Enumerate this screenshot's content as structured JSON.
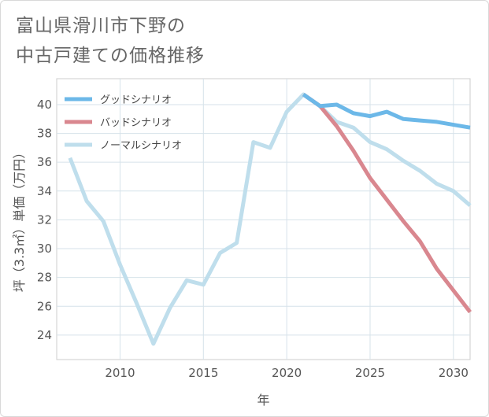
{
  "title": {
    "line1": "富山県滑川市下野の",
    "line2": "中古戸建ての価格推移"
  },
  "chart_data": {
    "type": "line",
    "xlabel": "年",
    "ylabel": "坪（3.3㎡）単価（万円）",
    "xlim": [
      2006.2,
      2031
    ],
    "ylim": [
      22.3,
      41.8
    ],
    "xticks": [
      2010,
      2015,
      2020,
      2025,
      2030
    ],
    "yticks": [
      24,
      26,
      28,
      30,
      32,
      34,
      36,
      38,
      40
    ],
    "grid": true,
    "legend_position": "top-left",
    "series": [
      {
        "name": "グッドシナリオ",
        "color": "#6cb8e8",
        "x": [
          2021,
          2022,
          2023,
          2024,
          2025,
          2026,
          2027,
          2028,
          2029,
          2030,
          2031
        ],
        "values": [
          40.7,
          39.9,
          40.0,
          39.4,
          39.2,
          39.5,
          39.0,
          38.9,
          38.8,
          38.6,
          38.4
        ]
      },
      {
        "name": "バッドシナリオ",
        "color": "#d9878f",
        "x": [
          2021,
          2022,
          2023,
          2024,
          2025,
          2026,
          2027,
          2028,
          2029,
          2030,
          2031
        ],
        "values": [
          40.7,
          39.9,
          38.5,
          36.8,
          34.9,
          33.4,
          31.9,
          30.5,
          28.6,
          27.1,
          25.6
        ]
      },
      {
        "name": "ノーマルシナリオ",
        "color": "#bfdeec",
        "x": [
          2007,
          2008,
          2009,
          2010,
          2011,
          2012,
          2013,
          2014,
          2015,
          2016,
          2017,
          2018,
          2019,
          2020,
          2021,
          2022,
          2023,
          2024,
          2025,
          2026,
          2027,
          2028,
          2029,
          2030,
          2031
        ],
        "values": [
          36.3,
          33.3,
          31.9,
          28.9,
          26.2,
          23.4,
          25.9,
          27.8,
          27.5,
          29.7,
          30.4,
          37.4,
          37.0,
          39.5,
          40.7,
          39.9,
          38.8,
          38.4,
          37.4,
          36.9,
          36.1,
          35.4,
          34.5,
          34.0,
          33.0
        ]
      }
    ]
  }
}
